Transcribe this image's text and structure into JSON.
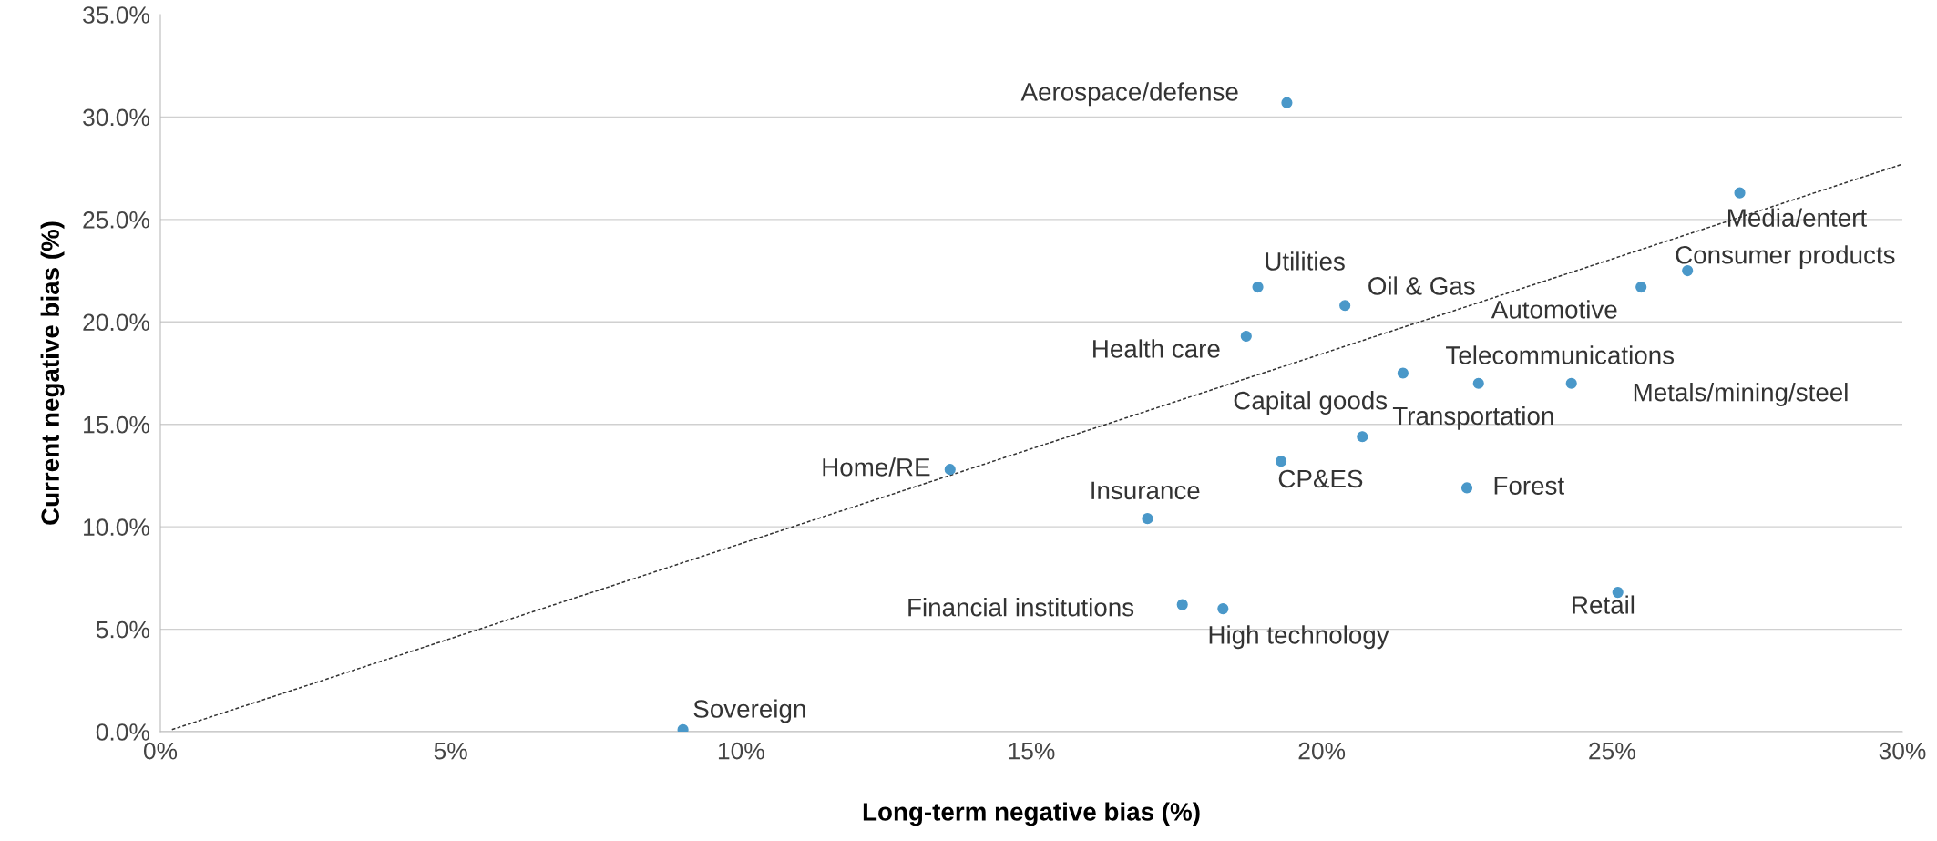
{
  "chart_data": {
    "type": "scatter",
    "xlabel": "Long-term negative bias (%)",
    "ylabel": "Current negative bias (%)",
    "x": [
      19.4,
      27.2,
      26.3,
      25.5,
      18.9,
      20.4,
      18.7,
      21.4,
      22.7,
      24.3,
      20.7,
      13.6,
      19.3,
      22.5,
      17.0,
      17.6,
      18.3,
      25.1,
      9.0
    ],
    "series": [
      {
        "color": "#4a98c9",
        "marker": "circle",
        "values": [
          30.7,
          26.3,
          22.5,
          21.7,
          21.7,
          20.8,
          19.3,
          17.5,
          17.0,
          17.0,
          14.4,
          12.8,
          13.2,
          11.9,
          10.4,
          6.2,
          6.0,
          6.8,
          0.1
        ]
      },
      {
        "type": "line",
        "color": "#333333",
        "line_style": "dashed",
        "x": [
          0.2,
          30
        ],
        "values": [
          0.1,
          27.7
        ]
      }
    ],
    "xlim": [
      0,
      30
    ],
    "ylim": [
      0,
      35
    ],
    "xticks": [
      {
        "value": 0,
        "label": "0%"
      },
      {
        "value": 5,
        "label": "5%"
      },
      {
        "value": 10,
        "label": "10%"
      },
      {
        "value": 15,
        "label": "15%"
      },
      {
        "value": 20,
        "label": "20%"
      },
      {
        "value": 25,
        "label": "25%"
      },
      {
        "value": 30,
        "label": "30%"
      }
    ],
    "yticks": [
      {
        "value": 0,
        "label": "0.0%"
      },
      {
        "value": 5,
        "label": "5.0%"
      },
      {
        "value": 10,
        "label": "10.0%"
      },
      {
        "value": 15,
        "label": "15.0%"
      },
      {
        "value": 20,
        "label": "20.0%"
      },
      {
        "value": 25,
        "label": "25.0%"
      },
      {
        "value": 30,
        "label": "30.0%"
      },
      {
        "value": 35,
        "label": "35.0%"
      }
    ],
    "grid": "y",
    "annotations": [
      {
        "text": "Aerospace/defense",
        "x": 19.4,
        "y": 30.7
      },
      {
        "text": "Media/entert",
        "x": 27.2,
        "y": 26.3
      },
      {
        "text": "Consumer products",
        "x": 26.3,
        "y": 22.5
      },
      {
        "text": "Automotive",
        "x": 25.5,
        "y": 21.7
      },
      {
        "text": "Utilities",
        "x": 18.9,
        "y": 21.7
      },
      {
        "text": "Oil & Gas",
        "x": 20.4,
        "y": 20.8
      },
      {
        "text": "Health care",
        "x": 18.7,
        "y": 19.3
      },
      {
        "text": "Capital goods",
        "x": 21.4,
        "y": 17.5
      },
      {
        "text": "Telecommunications",
        "x": 22.7,
        "y": 17.0
      },
      {
        "text": "Metals/mining/steel",
        "x": 24.3,
        "y": 17.0
      },
      {
        "text": "Transportation",
        "x": 20.7,
        "y": 14.4
      },
      {
        "text": "Home/RE",
        "x": 13.6,
        "y": 12.8
      },
      {
        "text": "CP&ES",
        "x": 19.3,
        "y": 13.2
      },
      {
        "text": "Forest",
        "x": 22.5,
        "y": 11.9
      },
      {
        "text": "Insurance",
        "x": 17.0,
        "y": 10.4
      },
      {
        "text": "Financial institutions",
        "x": 17.6,
        "y": 6.2
      },
      {
        "text": "High technology",
        "x": 18.3,
        "y": 6.0
      },
      {
        "text": "Retail",
        "x": 25.1,
        "y": 6.8
      },
      {
        "text": "Sovereign",
        "x": 9.0,
        "y": 0.1
      }
    ]
  }
}
